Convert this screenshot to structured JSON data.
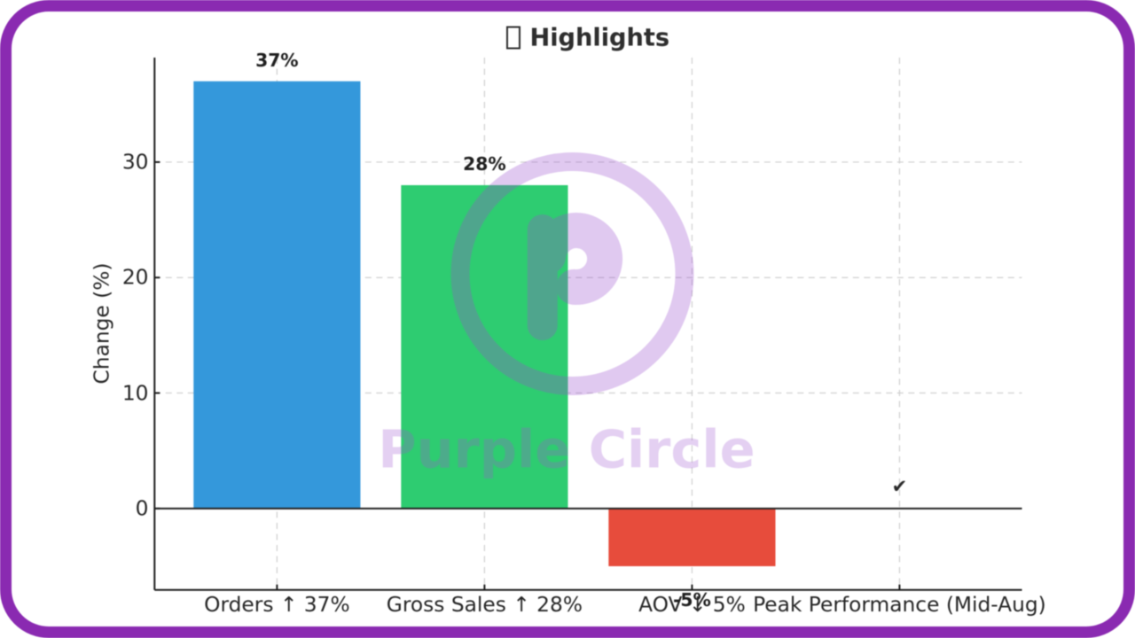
{
  "frame": {
    "border_color": "#8a2ab1"
  },
  "header": {
    "title": "Highlights",
    "title_has_missing_glyph_box": true
  },
  "watermark": {
    "brand_text": "Purple Circle",
    "mark_color": "#9b4fd0",
    "mark_opacity": 0.3,
    "text_color": "rgba(158,86,210,0.28)"
  },
  "chart_data": {
    "type": "bar",
    "title": "Highlights",
    "categories": [
      "Orders ↑ 37%",
      "Gross Sales ↑ 28%",
      "AOV ↓ 5%",
      "Peak Performance (Mid-Aug)"
    ],
    "values": [
      37,
      28,
      -5,
      null
    ],
    "bar_colors": [
      "#3498db",
      "#2ecc71",
      "#e74c3c",
      null
    ],
    "value_labels": [
      "37%",
      "28%",
      "-5%",
      null
    ],
    "annotations": [
      {
        "text": "✔",
        "category_index": 3,
        "y": 1.9
      }
    ],
    "ylabel": "Change (%)",
    "xlabel": "",
    "yticks": [
      0,
      10,
      20,
      30
    ],
    "ylim": [
      -7.05,
      39.05
    ],
    "grid": {
      "style": "dashed",
      "color": "#cfcfcf"
    },
    "axis_color": "#1c1c1c",
    "zero_line": true,
    "legend": null
  }
}
